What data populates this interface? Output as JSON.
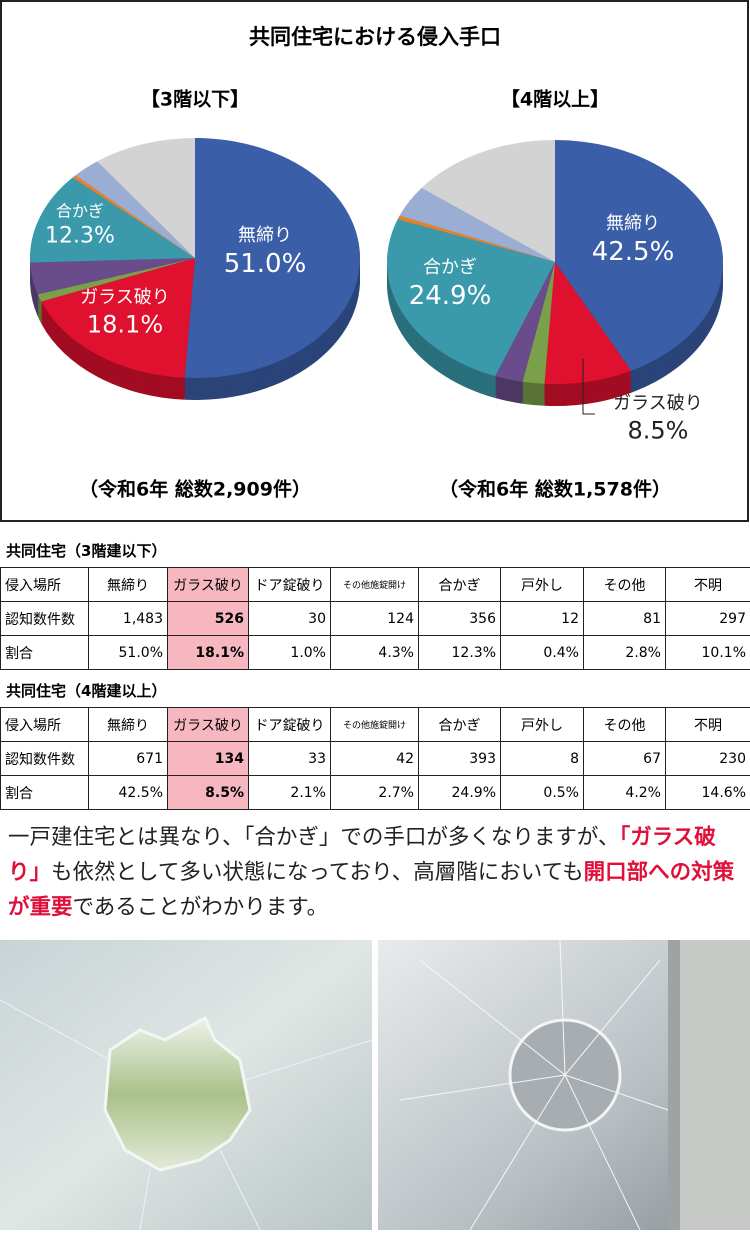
{
  "title": "共同住宅における侵入手口",
  "chart_data": [
    {
      "type": "pie",
      "title": "【3階以下】",
      "note": "（令和6年 総数2,909件）",
      "categories": [
        "無締り",
        "ガラス破り",
        null,
        null,
        "合かぎ",
        null,
        null,
        null
      ],
      "values": [
        51.0,
        18.1,
        1.0,
        4.3,
        12.3,
        0.4,
        2.8,
        10.1
      ],
      "value_labels": [
        "51.0%",
        "18.1%",
        null,
        null,
        "12.3%",
        null,
        null,
        null
      ],
      "colors": [
        "#3b5ea8",
        "#e0102f",
        "#7aa04a",
        "#6a4c8c",
        "#3a9aac",
        "#e8802a",
        "#9aaed4",
        "#d3d3d3"
      ]
    },
    {
      "type": "pie",
      "title": "【4階以上】",
      "note": "（令和6年 総数1,578件）",
      "categories": [
        "無締り",
        "ガラス破り",
        null,
        null,
        "合かぎ",
        null,
        null,
        null
      ],
      "values": [
        42.5,
        8.5,
        2.1,
        2.7,
        24.9,
        0.5,
        4.2,
        14.6
      ],
      "value_labels": [
        "42.5%",
        "8.5%",
        null,
        null,
        "24.9%",
        null,
        null,
        null
      ],
      "colors": [
        "#3b5ea8",
        "#e0102f",
        "#7aa04a",
        "#6a4c8c",
        "#3a9aac",
        "#e8802a",
        "#9aaed4",
        "#d3d3d3"
      ]
    }
  ],
  "tables": [
    {
      "title": "共同住宅（3階建以下）",
      "header": [
        "侵入場所",
        "無締り",
        "ガラス破り",
        "ドア錠破り",
        "その他施錠開け",
        "合かぎ",
        "戸外し",
        "その他",
        "不明"
      ],
      "rows": [
        [
          "認知数件数",
          "1,483",
          "526",
          "30",
          "124",
          "356",
          "12",
          "81",
          "297"
        ],
        [
          "割合",
          "51.0%",
          "18.1%",
          "1.0%",
          "4.3%",
          "12.3%",
          "0.4%",
          "2.8%",
          "10.1%"
        ]
      ]
    },
    {
      "title": "共同住宅（4階建以上）",
      "header": [
        "侵入場所",
        "無締り",
        "ガラス破り",
        "ドア錠破り",
        "その他施錠開け",
        "合かぎ",
        "戸外し",
        "その他",
        "不明"
      ],
      "rows": [
        [
          "認知数件数",
          "671",
          "134",
          "33",
          "42",
          "393",
          "8",
          "67",
          "230"
        ],
        [
          "割合",
          "42.5%",
          "8.5%",
          "2.1%",
          "2.7%",
          "24.9%",
          "0.5%",
          "4.2%",
          "14.6%"
        ]
      ]
    }
  ],
  "highlight_column": 2,
  "paragraph": [
    {
      "text": "一戸建住宅とは異なり、「合かぎ」での手口が多くなりますが、",
      "highlight": false
    },
    {
      "text": "「ガラス破り」",
      "highlight": true
    },
    {
      "text": "も依然として多い状態になっており、高層階においても",
      "highlight": false
    },
    {
      "text": "開口部への対策が重要",
      "highlight": true
    },
    {
      "text": "であることがわかります。",
      "highlight": false
    }
  ]
}
